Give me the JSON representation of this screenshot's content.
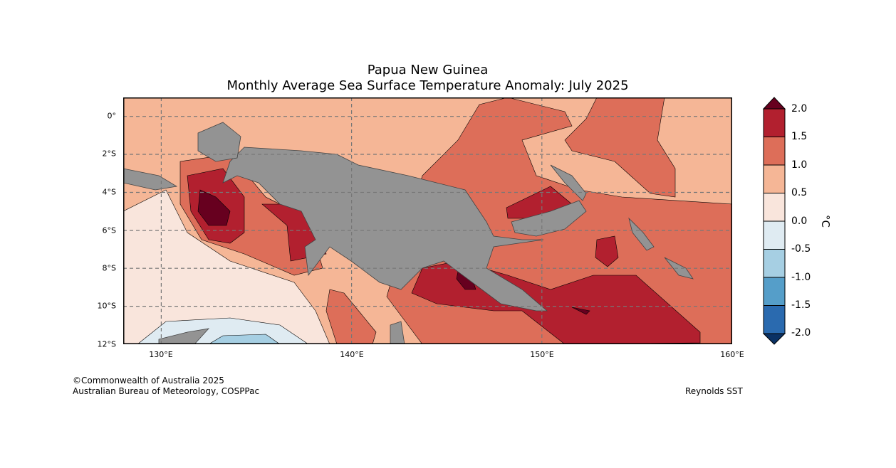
{
  "title": {
    "line1": "Papua New Guinea",
    "line2": "Monthly Average Sea Surface Temperature Anomaly: July 2025"
  },
  "map": {
    "lon_range": [
      128,
      160
    ],
    "lat_range": [
      -12,
      1
    ],
    "lat_labels": [
      "0°",
      "2°S",
      "4°S",
      "6°S",
      "8°S",
      "10°S",
      "12°S"
    ],
    "lon_labels": [
      "130°E",
      "140°E",
      "150°E",
      "160°E"
    ],
    "land_color": "#939393"
  },
  "colorbar": {
    "unit": "°C",
    "ticks": [
      "2.0",
      "1.5",
      "1.0",
      "0.5",
      "0.0",
      "-0.5",
      "-1.0",
      "-1.5",
      "-2.0"
    ],
    "colors": {
      "over": "#67001f",
      "b15_20": "#b2202f",
      "b10_15": "#dd6e59",
      "b05_10": "#f5b696",
      "b00_05": "#f9e5dc",
      "bm05_00": "#dfebf2",
      "bm10_m05": "#a6cfe3",
      "bm15_m10": "#559ec9",
      "bm20_m15": "#2a6aaf",
      "under": "#0a3164"
    }
  },
  "footer": {
    "copyright": "©Commonwealth of Australia 2025",
    "source": "Australian Bureau of Meteorology, COSPPac",
    "dataset": "Reynolds SST"
  }
}
